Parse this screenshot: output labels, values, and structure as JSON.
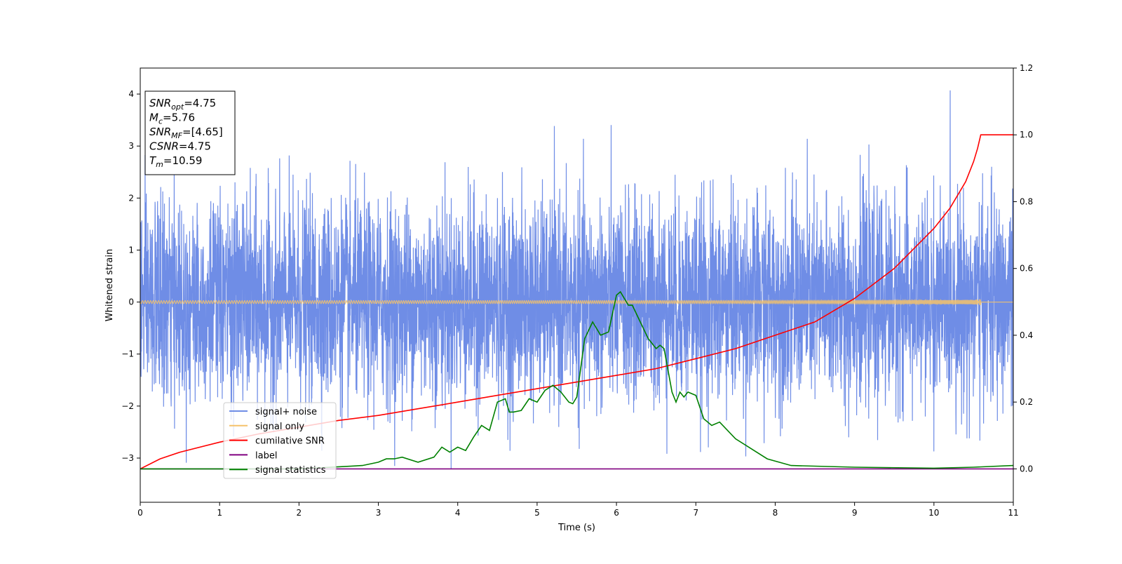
{
  "chart_data": {
    "type": "line",
    "xlabel": "Time (s)",
    "ylabel_left": "Whitened strain",
    "ylabel_right": "",
    "xlim": [
      0,
      11
    ],
    "ylim_left": [
      -3.85,
      4.5
    ],
    "ylim_right": [
      -0.1,
      1.2
    ],
    "xticks": [
      0,
      1,
      2,
      3,
      4,
      5,
      6,
      7,
      8,
      9,
      10,
      11
    ],
    "yticks_left": [
      -3,
      -2,
      -1,
      0,
      1,
      2,
      3,
      4
    ],
    "yticks_right": [
      0.0,
      0.2,
      0.4,
      0.6,
      0.8,
      1.0,
      1.2
    ],
    "grid": false,
    "legend_position": "lower-left",
    "info_box": [
      {
        "base": "SNR",
        "sub": "opt",
        "rest": "=4.75"
      },
      {
        "base": "M",
        "sub": "c",
        "rest": "=5.76"
      },
      {
        "base": "SNR",
        "sub": "MF",
        "rest": "=[4.65]"
      },
      {
        "base": "CSNR",
        "sub": "",
        "rest": "=4.75"
      },
      {
        "base": "T",
        "sub": "m",
        "rest": "=10.59"
      }
    ],
    "series": [
      {
        "name": "signal+ noise",
        "axis": "left",
        "color": "#6f8de6",
        "kind": "noise",
        "noise_sigma": 0.95,
        "noise_range": [
          -3.45,
          4.17
        ],
        "x_range": [
          0,
          11
        ]
      },
      {
        "name": "signal only",
        "axis": "left",
        "color": "#f5c26b",
        "kind": "chirp",
        "merger_time": 10.59,
        "peak_amplitude": 0.55,
        "x_range": [
          0,
          11
        ]
      },
      {
        "name": "cumilative SNR",
        "axis": "right",
        "color": "#ff0000",
        "kind": "line",
        "x": [
          0,
          0.25,
          0.5,
          1.0,
          1.5,
          2.0,
          2.5,
          3.0,
          3.5,
          4.0,
          4.5,
          5.0,
          5.5,
          6.0,
          6.5,
          7.0,
          7.5,
          8.0,
          8.5,
          9.0,
          9.5,
          10.0,
          10.2,
          10.4,
          10.5,
          10.55,
          10.59,
          11.0
        ],
        "y": [
          0.0,
          0.03,
          0.05,
          0.08,
          0.105,
          0.125,
          0.145,
          0.16,
          0.18,
          0.2,
          0.22,
          0.24,
          0.26,
          0.28,
          0.3,
          0.33,
          0.36,
          0.4,
          0.44,
          0.51,
          0.6,
          0.72,
          0.78,
          0.86,
          0.92,
          0.96,
          1.0,
          1.0
        ]
      },
      {
        "name": "label",
        "axis": "right",
        "color": "#800080",
        "kind": "line",
        "x": [
          0,
          11
        ],
        "y": [
          0.0,
          0.0
        ]
      },
      {
        "name": "signal statistics",
        "axis": "right",
        "color": "#008000",
        "kind": "line",
        "x": [
          0,
          2.0,
          2.8,
          3.0,
          3.1,
          3.2,
          3.3,
          3.5,
          3.7,
          3.8,
          3.9,
          4.0,
          4.1,
          4.2,
          4.3,
          4.4,
          4.5,
          4.6,
          4.65,
          4.7,
          4.8,
          4.9,
          5.0,
          5.1,
          5.2,
          5.3,
          5.4,
          5.45,
          5.5,
          5.6,
          5.7,
          5.8,
          5.9,
          6.0,
          6.05,
          6.15,
          6.2,
          6.3,
          6.4,
          6.5,
          6.55,
          6.6,
          6.7,
          6.75,
          6.8,
          6.85,
          6.9,
          7.0,
          7.1,
          7.2,
          7.3,
          7.5,
          7.7,
          7.9,
          8.2,
          9.0,
          10.0,
          10.5,
          11.0
        ],
        "y": [
          0.0,
          0.0,
          0.01,
          0.02,
          0.03,
          0.03,
          0.035,
          0.02,
          0.035,
          0.065,
          0.05,
          0.065,
          0.055,
          0.095,
          0.13,
          0.115,
          0.2,
          0.21,
          0.17,
          0.17,
          0.175,
          0.21,
          0.2,
          0.235,
          0.25,
          0.23,
          0.2,
          0.195,
          0.215,
          0.39,
          0.44,
          0.4,
          0.41,
          0.52,
          0.53,
          0.49,
          0.49,
          0.44,
          0.39,
          0.36,
          0.37,
          0.36,
          0.23,
          0.2,
          0.23,
          0.215,
          0.23,
          0.22,
          0.15,
          0.13,
          0.14,
          0.09,
          0.06,
          0.03,
          0.01,
          0.005,
          0.002,
          0.005,
          0.01
        ]
      }
    ]
  }
}
